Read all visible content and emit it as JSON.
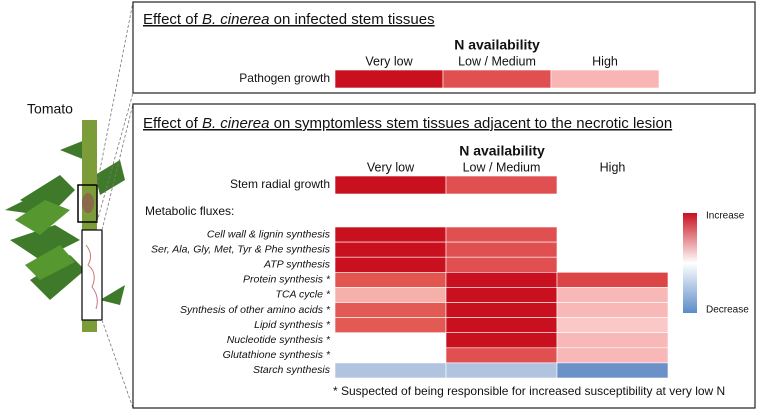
{
  "plant_label": "Tomato",
  "top_panel": {
    "title_parts": [
      "Effect of ",
      "B. cinerea",
      " on infected stem tissues"
    ],
    "axis_title": "N availability",
    "columns": [
      "Very low",
      "Low / Medium",
      "High"
    ],
    "rows": [
      {
        "label": "Pathogen growth",
        "colors": [
          "#c8101e",
          "#e05050",
          "#f9b4b4"
        ]
      }
    ]
  },
  "bottom_panel": {
    "title_parts": [
      "Effect of ",
      "B. cinerea",
      " on symptomless stem tissues adjacent to the necrotic lesion"
    ],
    "axis_title": "N availability",
    "columns": [
      "Very low",
      "Low / Medium",
      "High"
    ],
    "rows": [
      {
        "label": "Stem radial growth",
        "colors": [
          "#c8101e",
          "#e05050",
          null
        ]
      }
    ],
    "section_label": "Metabolic fluxes:",
    "flux_rows": [
      {
        "label": "Cell wall & lignin synthesis",
        "colors": [
          "#c8101e",
          "#e05050",
          null
        ]
      },
      {
        "label": "Ser, Ala, Gly, Met, Tyr & Phe synthesis",
        "colors": [
          "#c8101e",
          "#e05050",
          null
        ]
      },
      {
        "label": "ATP synthesis",
        "colors": [
          "#c8101e",
          "#e05050",
          null
        ]
      },
      {
        "label": "Protein synthesis *",
        "colors": [
          "#e2564f",
          "#c8101e",
          "#dc4545"
        ]
      },
      {
        "label": "TCA cycle *",
        "colors": [
          "#f6b0ac",
          "#c8101e",
          "#f8b8b8"
        ]
      },
      {
        "label": "Synthesis of other amino acids *",
        "colors": [
          "#e35a55",
          "#c8101e",
          "#f8b8b8"
        ]
      },
      {
        "label": "Lipid synthesis *",
        "colors": [
          "#e35a55",
          "#c8101e",
          "#fbc8c8"
        ]
      },
      {
        "label": "Nucleotide synthesis *",
        "colors": [
          null,
          "#c8101e",
          "#f8b8b8"
        ]
      },
      {
        "label": "Glutathione synthesis *",
        "colors": [
          null,
          "#e05050",
          "#f8b8b8"
        ]
      },
      {
        "label": "Starch synthesis",
        "colors": [
          "#b0c4e0",
          "#b0c4e0",
          "#6a92c8"
        ]
      }
    ],
    "legend": {
      "high": "Increase",
      "low": "Decrease",
      "colors": [
        "#c8101e",
        "#ffffff",
        "#5b8cc8"
      ]
    },
    "footnote": "* Suspected of being responsible for increased susceptibility at very low N"
  }
}
